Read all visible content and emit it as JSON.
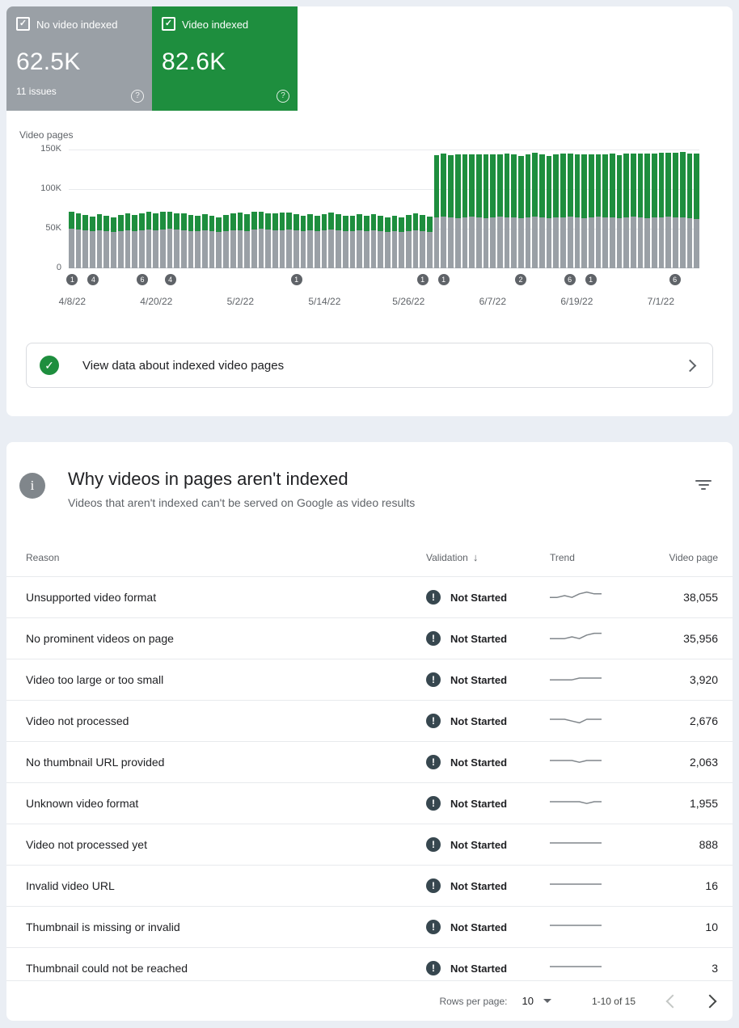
{
  "icons": {
    "check": "✓",
    "exclamation": "!",
    "question": "?",
    "info": "i",
    "sort_arrow": "↓"
  },
  "colors": {
    "green": "#1e8e3e",
    "gray": "#9aa0a6",
    "marker": "#5f6368",
    "validation_icon": "#37474f"
  },
  "stat_boxes": {
    "not_indexed": {
      "label": "No video indexed",
      "value": "62.5K",
      "sub": "11 issues",
      "checked": true
    },
    "indexed": {
      "label": "Video indexed",
      "value": "82.6K",
      "checked": true
    }
  },
  "chart_data": {
    "type": "bar",
    "stacked": true,
    "title": "Video pages",
    "unit": "thousands (K)",
    "ylim": [
      0,
      150
    ],
    "y_ticks": [
      "150K",
      "100K",
      "50K",
      "0"
    ],
    "grid": true,
    "x_tick_labels": [
      "4/8/22",
      "4/20/22",
      "5/2/22",
      "5/14/22",
      "5/26/22",
      "6/7/22",
      "6/19/22",
      "7/1/22"
    ],
    "x_tick_indices": [
      0,
      12,
      24,
      36,
      48,
      60,
      72,
      84
    ],
    "series": [
      {
        "name": "No video indexed",
        "color": "#9aa0a6",
        "values": [
          50,
          49,
          48,
          47,
          48,
          47,
          46,
          47,
          48,
          47,
          48,
          49,
          48,
          49,
          50,
          49,
          48,
          47,
          47,
          48,
          47,
          46,
          47,
          48,
          48,
          47,
          49,
          50,
          49,
          48,
          48,
          49,
          48,
          47,
          48,
          47,
          48,
          49,
          48,
          47,
          47,
          48,
          47,
          48,
          47,
          46,
          47,
          46,
          47,
          48,
          47,
          46,
          64,
          65,
          64,
          63,
          64,
          65,
          64,
          63,
          64,
          65,
          64,
          64,
          63,
          64,
          65,
          64,
          63,
          64,
          64,
          65,
          64,
          63,
          64,
          65,
          64,
          64,
          63,
          64,
          65,
          64,
          63,
          64,
          64,
          65,
          64,
          64,
          63,
          62.5
        ]
      },
      {
        "name": "Video indexed",
        "color": "#1e8e3e",
        "values": [
          21,
          20,
          19,
          18,
          20,
          19,
          18,
          20,
          21,
          20,
          21,
          22,
          21,
          22,
          21,
          20,
          21,
          20,
          19,
          20,
          19,
          18,
          20,
          21,
          22,
          21,
          22,
          21,
          20,
          21,
          22,
          21,
          20,
          19,
          20,
          19,
          20,
          21,
          20,
          19,
          19,
          20,
          19,
          20,
          19,
          18,
          19,
          18,
          20,
          21,
          20,
          19,
          79,
          80,
          79,
          81,
          80,
          79,
          80,
          81,
          80,
          79,
          81,
          80,
          79,
          80,
          81,
          80,
          79,
          80,
          81,
          80,
          80,
          81,
          80,
          79,
          80,
          81,
          80,
          81,
          80,
          81,
          82,
          81,
          82,
          81,
          82,
          83,
          82,
          82.6
        ]
      }
    ],
    "markers": [
      {
        "index": 0,
        "label": "1"
      },
      {
        "index": 3,
        "label": "4"
      },
      {
        "index": 10,
        "label": "6"
      },
      {
        "index": 14,
        "label": "4"
      },
      {
        "index": 32,
        "label": "1"
      },
      {
        "index": 50,
        "label": "1"
      },
      {
        "index": 53,
        "label": "1"
      },
      {
        "index": 64,
        "label": "2"
      },
      {
        "index": 71,
        "label": "6"
      },
      {
        "index": 74,
        "label": "1"
      },
      {
        "index": 86,
        "label": "6"
      }
    ]
  },
  "view_data_row": {
    "label": "View data about indexed video pages"
  },
  "panel": {
    "title": "Why videos in pages aren't indexed",
    "subtitle": "Videos that aren't indexed can't be served on Google as video results"
  },
  "table": {
    "headers": {
      "reason": "Reason",
      "validation": "Validation",
      "trend": "Trend",
      "video_page": "Video page"
    },
    "rows": [
      {
        "reason": "Unsupported video format",
        "validation": "Not Started",
        "video_pages": "38,055",
        "trend": [
          4,
          4,
          5,
          4,
          6,
          7,
          6,
          6
        ]
      },
      {
        "reason": "No prominent videos on page",
        "validation": "Not Started",
        "video_pages": "35,956",
        "trend": [
          4,
          4,
          4,
          5,
          4,
          6,
          7,
          7
        ]
      },
      {
        "reason": "Video too large or too small",
        "validation": "Not Started",
        "video_pages": "3,920",
        "trend": [
          4,
          4,
          4,
          4,
          5,
          5,
          5,
          5
        ]
      },
      {
        "reason": "Video not processed",
        "validation": "Not Started",
        "video_pages": "2,676",
        "trend": [
          5,
          5,
          5,
          4,
          3,
          5,
          5,
          5
        ]
      },
      {
        "reason": "No thumbnail URL provided",
        "validation": "Not Started",
        "video_pages": "2,063",
        "trend": [
          5,
          5,
          5,
          5,
          4,
          5,
          5,
          5
        ]
      },
      {
        "reason": "Unknown video format",
        "validation": "Not Started",
        "video_pages": "1,955",
        "trend": [
          5,
          5,
          5,
          5,
          5,
          4,
          5,
          5
        ]
      },
      {
        "reason": "Video not processed yet",
        "validation": "Not Started",
        "video_pages": "888",
        "trend": [
          5,
          5,
          5,
          5,
          5,
          5,
          5,
          5
        ]
      },
      {
        "reason": "Invalid video URL",
        "validation": "Not Started",
        "video_pages": "16",
        "trend": [
          5,
          5,
          5,
          5,
          5,
          5,
          5,
          5
        ]
      },
      {
        "reason": "Thumbnail is missing or invalid",
        "validation": "Not Started",
        "video_pages": "10",
        "trend": [
          5,
          5,
          5,
          5,
          5,
          5,
          5,
          5
        ]
      },
      {
        "reason": "Thumbnail could not be reached",
        "validation": "Not Started",
        "video_pages": "3",
        "trend": [
          5,
          5,
          5,
          5,
          5,
          5,
          5,
          5
        ]
      }
    ]
  },
  "footer": {
    "rows_per_page_label": "Rows per page:",
    "rows_per_page": "10",
    "range": "1-10 of 15"
  }
}
